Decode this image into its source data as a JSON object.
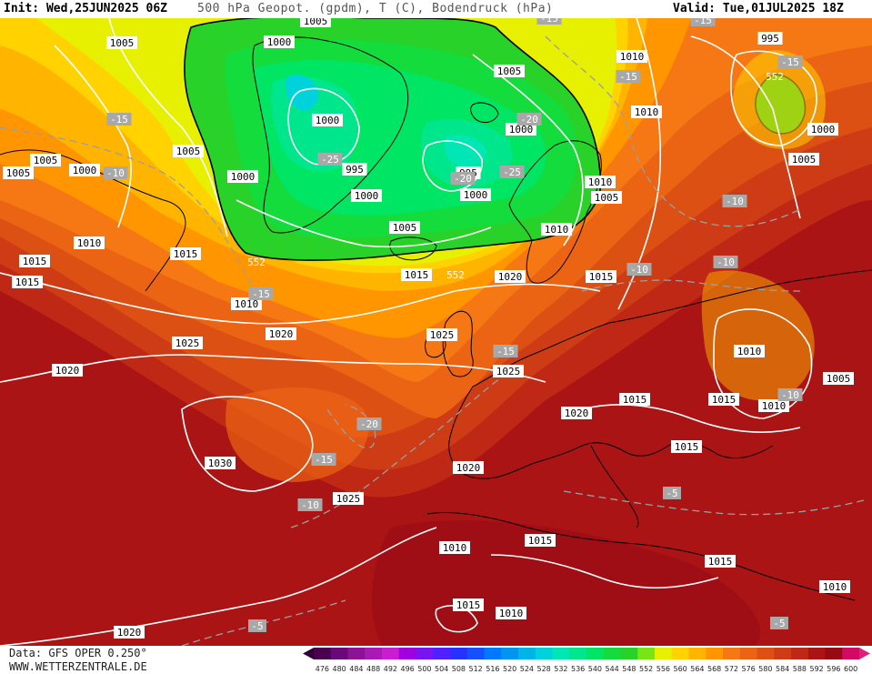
{
  "header": {
    "init": "Init: Wed,25JUN2025 06Z",
    "title": "500 hPa Geopot. (gpdm), T (C), Bodendruck (hPa)",
    "valid": "Valid: Tue,01JUL2025 18Z"
  },
  "footer": {
    "data_source": "Data: GFS OPER 0.250°",
    "website": "WWW.WETTERZENTRALE.DE"
  },
  "legend": {
    "values": [
      "476",
      "480",
      "484",
      "488",
      "492",
      "496",
      "500",
      "504",
      "508",
      "512",
      "516",
      "520",
      "524",
      "528",
      "532",
      "536",
      "540",
      "544",
      "548",
      "552",
      "556",
      "560",
      "564",
      "568",
      "572",
      "576",
      "580",
      "584",
      "588",
      "592",
      "596",
      "600"
    ],
    "colors": [
      "#4b0050",
      "#6a0a78",
      "#8c1296",
      "#a81ab4",
      "#c81ed0",
      "#a000e0",
      "#7814f0",
      "#5020ff",
      "#2832ff",
      "#1450ff",
      "#0078ff",
      "#0096f0",
      "#00b4e6",
      "#00d2dc",
      "#00e6b4",
      "#00e68c",
      "#00e664",
      "#14dc3c",
      "#28d228",
      "#78e614",
      "#e6f000",
      "#ffd200",
      "#ffb400",
      "#ff9600",
      "#f57814",
      "#eb6414",
      "#dc5014",
      "#cd3c14",
      "#be2814",
      "#aa1414",
      "#960a14",
      "#d20a64"
    ],
    "arrow_left_color": "#30003a",
    "arrow_right_color": "#e01e82"
  },
  "pressure_labels": [
    {
      "id": "p1",
      "text": "1005"
    },
    {
      "id": "p2",
      "text": "1005"
    },
    {
      "id": "p3",
      "text": "1000"
    },
    {
      "id": "p4",
      "text": "1005"
    },
    {
      "id": "p5",
      "text": "1005"
    },
    {
      "id": "p6",
      "text": "1000"
    },
    {
      "id": "p7",
      "text": "1005"
    },
    {
      "id": "p8",
      "text": "1000"
    },
    {
      "id": "p9",
      "text": "1000"
    },
    {
      "id": "p10",
      "text": "1000"
    },
    {
      "id": "p11",
      "text": "995"
    },
    {
      "id": "p12",
      "text": "995"
    },
    {
      "id": "p13",
      "text": "1000"
    },
    {
      "id": "p14",
      "text": "1000"
    },
    {
      "id": "p15",
      "text": "1005"
    },
    {
      "id": "p16",
      "text": "1010"
    },
    {
      "id": "p17",
      "text": "1010"
    },
    {
      "id": "p18",
      "text": "1015"
    },
    {
      "id": "p19",
      "text": "1015"
    },
    {
      "id": "p20",
      "text": "1010"
    },
    {
      "id": "p21",
      "text": "1020"
    },
    {
      "id": "p22",
      "text": "1015"
    },
    {
      "id": "p23",
      "text": "1020"
    },
    {
      "id": "p24",
      "text": "1015"
    },
    {
      "id": "p25",
      "text": "1025"
    },
    {
      "id": "p26",
      "text": "1025"
    },
    {
      "id": "p27",
      "text": "1020"
    },
    {
      "id": "p28",
      "text": "1025"
    },
    {
      "id": "p29",
      "text": "1030"
    },
    {
      "id": "p30",
      "text": "1025"
    },
    {
      "id": "p31",
      "text": "1020"
    },
    {
      "id": "p32",
      "text": "1015"
    },
    {
      "id": "p33",
      "text": "1020"
    },
    {
      "id": "p34",
      "text": "1015"
    },
    {
      "id": "p35",
      "text": "1010"
    },
    {
      "id": "p36",
      "text": "1010"
    },
    {
      "id": "p37",
      "text": "1010"
    },
    {
      "id": "p38",
      "text": "1015"
    },
    {
      "id": "p39",
      "text": "1005"
    },
    {
      "id": "p40",
      "text": "1010"
    },
    {
      "id": "p41",
      "text": "1015"
    },
    {
      "id": "p42",
      "text": "1015"
    },
    {
      "id": "p43",
      "text": "1010"
    },
    {
      "id": "p44",
      "text": "1015"
    },
    {
      "id": "p45",
      "text": "1010"
    },
    {
      "id": "p46",
      "text": "1020"
    },
    {
      "id": "p47",
      "text": "995"
    },
    {
      "id": "p48",
      "text": "1000"
    },
    {
      "id": "p49",
      "text": "1005"
    },
    {
      "id": "p50",
      "text": "1010"
    },
    {
      "id": "p51",
      "text": "1010"
    },
    {
      "id": "p52",
      "text": "1005"
    },
    {
      "id": "p53",
      "text": "1005"
    },
    {
      "id": "p54",
      "text": "1015"
    }
  ],
  "temperature_labels": [
    {
      "id": "t1",
      "text": "-15"
    },
    {
      "id": "t2",
      "text": "-10"
    },
    {
      "id": "t3",
      "text": "-25"
    },
    {
      "id": "t4",
      "text": "-20"
    },
    {
      "id": "t5",
      "text": "-25"
    },
    {
      "id": "t6",
      "text": "-20"
    },
    {
      "id": "t7",
      "text": "-15"
    },
    {
      "id": "t8",
      "text": "-20"
    },
    {
      "id": "t9",
      "text": "-15"
    },
    {
      "id": "t10",
      "text": "-10"
    },
    {
      "id": "t11",
      "text": "-15"
    },
    {
      "id": "t12",
      "text": "-15"
    },
    {
      "id": "t13",
      "text": "-15"
    },
    {
      "id": "t14",
      "text": "-10"
    },
    {
      "id": "t15",
      "text": "-10"
    },
    {
      "id": "t16",
      "text": "-10"
    },
    {
      "id": "t17",
      "text": "-10"
    },
    {
      "id": "t18",
      "text": "-5"
    },
    {
      "id": "t19",
      "text": "-5"
    },
    {
      "id": "t20",
      "text": "-5"
    },
    {
      "id": "t21",
      "text": "-15"
    },
    {
      "id": "t22",
      "text": "-15"
    }
  ],
  "geopotential_labels": [
    {
      "id": "g1",
      "text": "552"
    },
    {
      "id": "g2",
      "text": "552"
    },
    {
      "id": "g3",
      "text": "552"
    }
  ]
}
